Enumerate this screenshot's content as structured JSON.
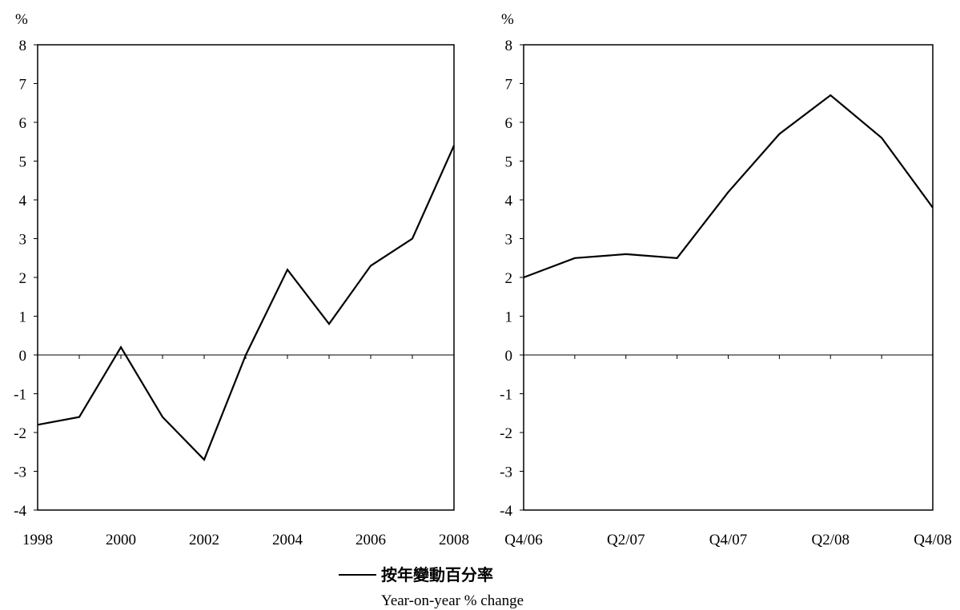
{
  "chart_data": [
    {
      "type": "line",
      "unit_label": "%",
      "ylim": [
        -4,
        8
      ],
      "y_ticks": [
        "8",
        "7",
        "6",
        "5",
        "4",
        "3",
        "2",
        "1",
        "0",
        "-1",
        "-2",
        "-3",
        "-4"
      ],
      "categories": [
        "1998",
        "1999",
        "2000",
        "2001",
        "2002",
        "2003",
        "2004",
        "2005",
        "2006",
        "2007",
        "2008"
      ],
      "x_tick_labels": [
        "1998",
        "",
        "2000",
        "",
        "2002",
        "",
        "2004",
        "",
        "2006",
        "",
        "2008"
      ],
      "series": [
        {
          "name": "按年變動百分率 Year-on-year % change",
          "values": [
            -1.8,
            -1.6,
            0.2,
            -1.6,
            -2.7,
            0.0,
            2.2,
            0.8,
            2.3,
            3.0,
            5.4
          ]
        }
      ]
    },
    {
      "type": "line",
      "unit_label": "%",
      "ylim": [
        -4,
        8
      ],
      "y_ticks": [
        "8",
        "7",
        "6",
        "5",
        "4",
        "3",
        "2",
        "1",
        "0",
        "-1",
        "-2",
        "-3",
        "-4"
      ],
      "categories": [
        "Q4/06",
        "Q1/07",
        "Q2/07",
        "Q3/07",
        "Q4/07",
        "Q1/08",
        "Q2/08",
        "Q3/08",
        "Q4/08"
      ],
      "x_tick_labels": [
        "Q4/06",
        "",
        "Q2/07",
        "",
        "Q4/07",
        "",
        "Q2/08",
        "",
        "Q4/08"
      ],
      "series": [
        {
          "name": "按年變動百分率 Year-on-year % change",
          "values": [
            2.0,
            2.5,
            2.6,
            2.5,
            4.2,
            5.7,
            6.7,
            5.6,
            3.8
          ]
        }
      ]
    }
  ],
  "legend": {
    "label_cn": "按年變動百分率",
    "label_en": "Year-on-year % change",
    "line_color": "#000000"
  }
}
